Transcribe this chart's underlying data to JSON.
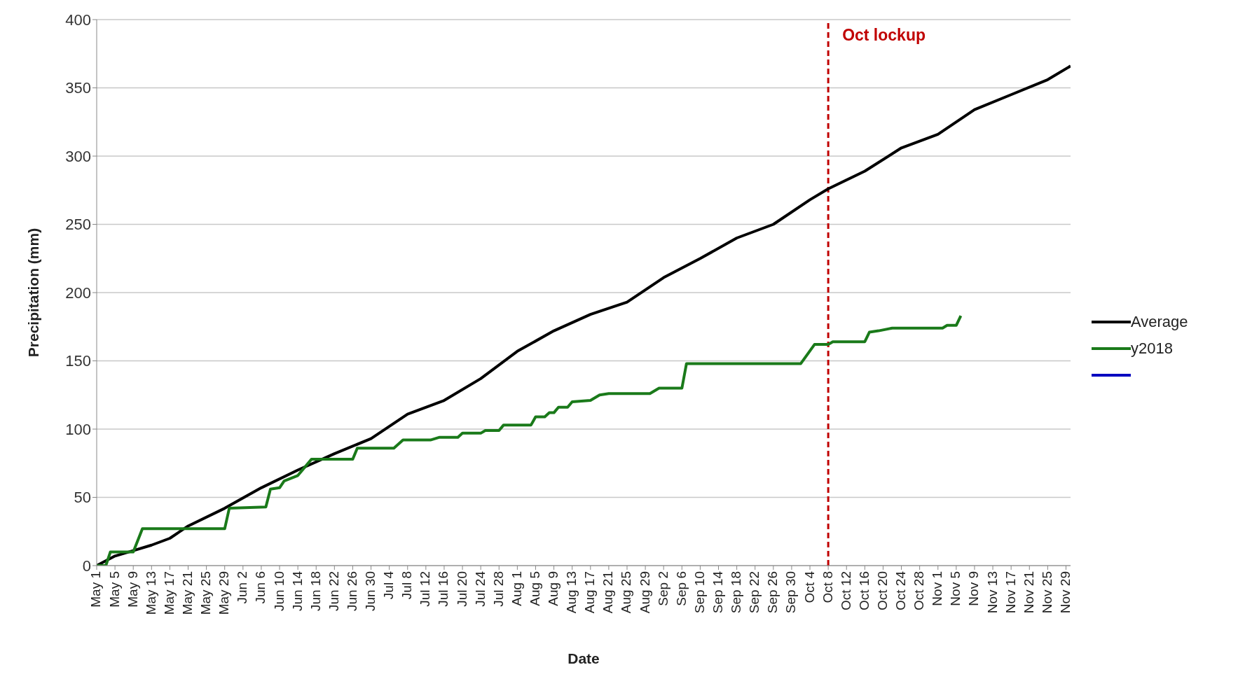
{
  "chart_data": {
    "type": "line",
    "xlabel": "Date",
    "ylabel": "Precipitation (mm)",
    "ylim": [
      0,
      400
    ],
    "yticks": [
      0,
      50,
      100,
      150,
      200,
      250,
      300,
      350,
      400
    ],
    "grid": "y",
    "legend": "right",
    "marker": "none",
    "line_style": "solid",
    "xlim": [
      "--05-01",
      "--11-30"
    ],
    "xticks": [
      {
        "value": "--05-01",
        "label": "May 1"
      },
      {
        "value": "--05-05",
        "label": "May 5"
      },
      {
        "value": "--05-09",
        "label": "May 9"
      },
      {
        "value": "--05-13",
        "label": "May 13"
      },
      {
        "value": "--05-17",
        "label": "May 17"
      },
      {
        "value": "--05-21",
        "label": "May 21"
      },
      {
        "value": "--05-25",
        "label": "May 25"
      },
      {
        "value": "--05-29",
        "label": "May 29"
      },
      {
        "value": "--06-02",
        "label": "Jun 2"
      },
      {
        "value": "--06-06",
        "label": "Jun 6"
      },
      {
        "value": "--06-10",
        "label": "Jun 10"
      },
      {
        "value": "--06-14",
        "label": "Jun 14"
      },
      {
        "value": "--06-18",
        "label": "Jun 18"
      },
      {
        "value": "--06-22",
        "label": "Jun 22"
      },
      {
        "value": "--06-26",
        "label": "Jun 26"
      },
      {
        "value": "--06-30",
        "label": "Jun 30"
      },
      {
        "value": "--07-04",
        "label": "Jul 4"
      },
      {
        "value": "--07-08",
        "label": "Jul 8"
      },
      {
        "value": "--07-12",
        "label": "Jul 12"
      },
      {
        "value": "--07-16",
        "label": "Jul 16"
      },
      {
        "value": "--07-20",
        "label": "Jul 20"
      },
      {
        "value": "--07-24",
        "label": "Jul 24"
      },
      {
        "value": "--07-28",
        "label": "Jul 28"
      },
      {
        "value": "--08-01",
        "label": "Aug 1"
      },
      {
        "value": "--08-05",
        "label": "Aug 5"
      },
      {
        "value": "--08-09",
        "label": "Aug 9"
      },
      {
        "value": "--08-13",
        "label": "Aug 13"
      },
      {
        "value": "--08-17",
        "label": "Aug 17"
      },
      {
        "value": "--08-21",
        "label": "Aug 21"
      },
      {
        "value": "--08-25",
        "label": "Aug 25"
      },
      {
        "value": "--08-29",
        "label": "Aug 29"
      },
      {
        "value": "--09-02",
        "label": "Sep 2"
      },
      {
        "value": "--09-06",
        "label": "Sep 6"
      },
      {
        "value": "--09-10",
        "label": "Sep 10"
      },
      {
        "value": "--09-14",
        "label": "Sep 14"
      },
      {
        "value": "--09-18",
        "label": "Sep 18"
      },
      {
        "value": "--09-22",
        "label": "Sep 22"
      },
      {
        "value": "--09-26",
        "label": "Sep 26"
      },
      {
        "value": "--09-30",
        "label": "Sep 30"
      },
      {
        "value": "--10-04",
        "label": "Oct 4"
      },
      {
        "value": "--10-08",
        "label": "Oct 8"
      },
      {
        "value": "--10-12",
        "label": "Oct 12"
      },
      {
        "value": "--10-16",
        "label": "Oct 16"
      },
      {
        "value": "--10-20",
        "label": "Oct 20"
      },
      {
        "value": "--10-24",
        "label": "Oct 24"
      },
      {
        "value": "--10-28",
        "label": "Oct 28"
      },
      {
        "value": "--11-01",
        "label": "Nov 1"
      },
      {
        "value": "--11-05",
        "label": "Nov 5"
      },
      {
        "value": "--11-09",
        "label": "Nov 9"
      },
      {
        "value": "--11-13",
        "label": "Nov 13"
      },
      {
        "value": "--11-17",
        "label": "Nov 17"
      },
      {
        "value": "--11-21",
        "label": "Nov 21"
      },
      {
        "value": "--11-25",
        "label": "Nov 25"
      },
      {
        "value": "--11-29",
        "label": "Nov 29"
      }
    ],
    "ref_lines": [
      {
        "axis": "x",
        "value": "--10-08",
        "label": "Oct lockup",
        "color": "#c00000",
        "line_style": "dashed"
      }
    ],
    "series": [
      {
        "name": "Average",
        "color": "#000000",
        "x": [
          "--05-01",
          "--05-05",
          "--05-09",
          "--05-13",
          "--05-17",
          "--05-21",
          "--05-29",
          "--06-06",
          "--06-14",
          "--06-22",
          "--06-30",
          "--07-08",
          "--07-16",
          "--07-24",
          "--08-01",
          "--08-09",
          "--08-17",
          "--08-25",
          "--09-02",
          "--09-10",
          "--09-18",
          "--09-26",
          "--10-04",
          "--10-08",
          "--10-16",
          "--10-24",
          "--11-01",
          "--11-09",
          "--11-17",
          "--11-25",
          "--11-30"
        ],
        "values": [
          0,
          7,
          11,
          15,
          20,
          29,
          42,
          57,
          70,
          82,
          93,
          111,
          121,
          137,
          157,
          172,
          184,
          193,
          211,
          225,
          240,
          250,
          268,
          276,
          289,
          306,
          316,
          334,
          345,
          356,
          366
        ]
      },
      {
        "name": "y2018",
        "color": "#1a7a1a",
        "x": [
          "--05-01",
          "--05-03",
          "--05-04",
          "--05-09",
          "--05-11",
          "--05-29",
          "--05-30",
          "--06-07",
          "--06-08",
          "--06-10",
          "--06-11",
          "--06-14",
          "--06-17",
          "--06-26",
          "--06-27",
          "--07-05",
          "--07-07",
          "--07-13",
          "--07-15",
          "--07-19",
          "--07-20",
          "--07-24",
          "--07-25",
          "--07-28",
          "--07-29",
          "--08-04",
          "--08-05",
          "--08-07",
          "--08-08",
          "--08-09",
          "--08-10",
          "--08-12",
          "--08-13",
          "--08-17",
          "--08-19",
          "--08-21",
          "--08-30",
          "--09-01",
          "--09-06",
          "--09-07",
          "--10-02",
          "--10-05",
          "--10-08",
          "--10-09",
          "--10-16",
          "--10-17",
          "--10-19",
          "--10-22",
          "--11-02",
          "--11-03",
          "--11-05",
          "--11-06"
        ],
        "values": [
          0,
          0,
          10,
          10,
          27,
          27,
          42,
          43,
          56,
          57,
          62,
          66,
          78,
          78,
          86,
          86,
          92,
          92,
          94,
          94,
          97,
          97,
          99,
          99,
          103,
          103,
          109,
          109,
          112,
          112,
          116,
          116,
          120,
          121,
          125,
          126,
          126,
          130,
          130,
          148,
          148,
          162,
          162,
          164,
          164,
          171,
          172,
          174,
          174,
          176,
          176,
          183
        ]
      },
      {
        "color": "#0000c0"
      }
    ]
  }
}
